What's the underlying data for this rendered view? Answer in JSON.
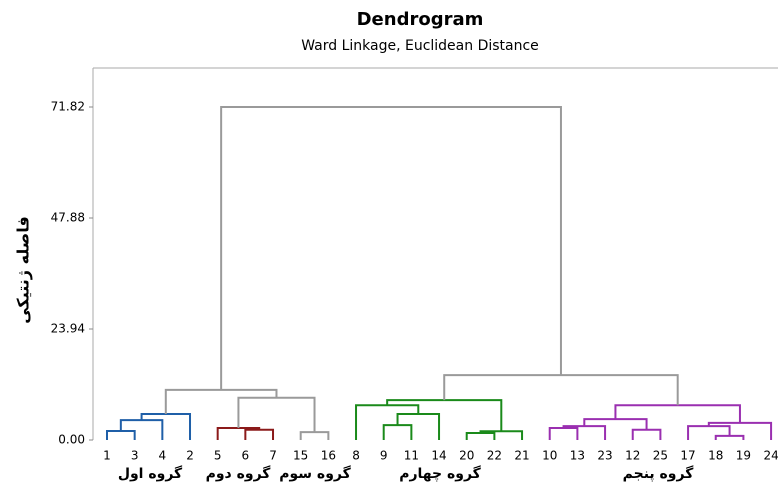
{
  "chart_data": {
    "type": "dendrogram",
    "title": "Dendrogram",
    "subtitle": "Ward Linkage, Euclidean Distance",
    "y_label": "فاصله ژنتیکی",
    "ylim": [
      0,
      71.82
    ],
    "yticks": [
      {
        "value": 0,
        "label": "0.00"
      },
      23.94,
      47.88,
      71.82
    ],
    "groups": [
      "گروه اول",
      "گروه دوم",
      "گروه سوم",
      "گروه چهارم",
      "گروه پنجم"
    ],
    "tree": {
      "height": 71.82,
      "color": "#9a9a9a",
      "children": [
        {
          "height": 10.8,
          "color": "#9a9a9a",
          "children": [
            {
              "height": 5.6,
              "color": "#1f5fa8",
              "children": [
                {
                  "height": 4.3,
                  "color": "#1f5fa8",
                  "children": [
                    {
                      "height": 1.94,
                      "color": "#1f5fa8",
                      "children": [
                        "1",
                        "3"
                      ]
                    },
                    "4"
                  ]
                },
                "2"
              ]
            },
            {
              "height": 9.1,
              "color": "#9a9a9a",
              "children": [
                {
                  "height": 2.6,
                  "color": "#8b1a1a",
                  "children": [
                    "5",
                    {
                      "height": 2.2,
                      "color": "#8b1a1a",
                      "children": [
                        "6",
                        "7"
                      ]
                    }
                  ]
                },
                {
                  "height": 1.7,
                  "color": "#9a9a9a",
                  "children": [
                    "15",
                    "16"
                  ]
                }
              ]
            }
          ]
        },
        {
          "height": 14.0,
          "color": "#9a9a9a",
          "children": [
            {
              "height": 8.6,
              "color": "#1a8a1a",
              "children": [
                {
                  "height": 7.5,
                  "color": "#1a8a1a",
                  "children": [
                    "8",
                    {
                      "height": 5.6,
                      "color": "#1a8a1a",
                      "children": [
                        {
                          "height": 3.2,
                          "color": "#1a8a1a",
                          "children": [
                            "9",
                            "11"
                          ]
                        },
                        "14"
                      ]
                    }
                  ]
                },
                {
                  "height": 1.9,
                  "color": "#1a8a1a",
                  "children": [
                    {
                      "height": 1.5,
                      "color": "#1a8a1a",
                      "children": [
                        "20",
                        "22"
                      ]
                    },
                    "21"
                  ]
                }
              ]
            },
            {
              "height": 7.5,
              "color": "#9a2fb0",
              "children": [
                {
                  "height": 4.5,
                  "color": "#9a2fb0",
                  "children": [
                    {
                      "height": 3.0,
                      "color": "#9a2fb0",
                      "children": [
                        {
                          "height": 2.6,
                          "color": "#9a2fb0",
                          "children": [
                            "10",
                            "13"
                          ]
                        },
                        "23"
                      ]
                    },
                    {
                      "height": 2.2,
                      "color": "#9a2fb0",
                      "children": [
                        "12",
                        "25"
                      ]
                    }
                  ]
                },
                {
                  "height": 3.7,
                  "color": "#9a2fb0",
                  "children": [
                    {
                      "height": 3.0,
                      "color": "#9a2fb0",
                      "children": [
                        "17",
                        {
                          "height": 0.9,
                          "color": "#9a2fb0",
                          "children": [
                            "18",
                            "19"
                          ]
                        }
                      ]
                    },
                    "24"
                  ]
                }
              ]
            }
          ]
        }
      ]
    }
  }
}
